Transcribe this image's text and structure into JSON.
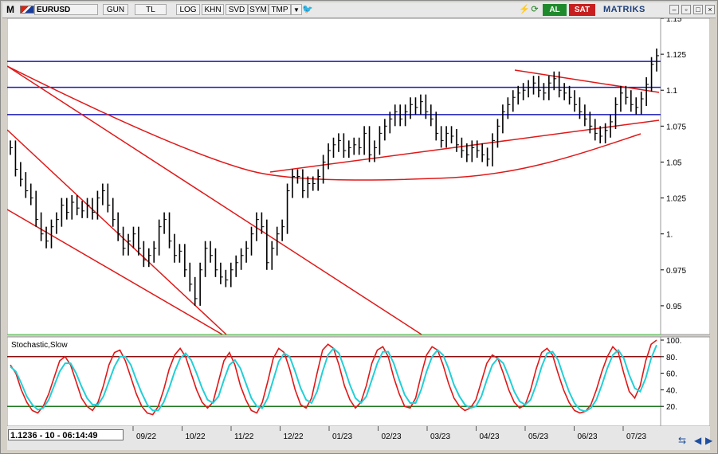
{
  "toolbar": {
    "symbol": "EURUSD",
    "periods": [
      "GUN",
      "TL",
      "LOG",
      "KHN",
      "SVD",
      "SYM",
      "TMP"
    ],
    "buy_label": "AL",
    "sell_label": "SAT",
    "brand": "MATRIKS"
  },
  "status": {
    "readout": "1.1236 - 10 - 06:14:49"
  },
  "colors": {
    "price_line": "#000000",
    "channel": "#e01818",
    "support": "#1a1ab8",
    "stoch_k": "#e01818",
    "stoch_d": "#22cfd6",
    "overbought": "#8b1010",
    "oversold": "#1f7a1f"
  },
  "chart_data": [
    {
      "type": "line",
      "title": "",
      "x_tick_labels": [
        "09/22",
        "10/22",
        "11/22",
        "12/22",
        "01/23",
        "02/23",
        "03/23",
        "04/23",
        "05/23",
        "06/23",
        "07/23"
      ],
      "y_tick_labels": [
        "1.15",
        "1.125",
        "1.1",
        "1.075",
        "1.05",
        "1.025",
        "1.",
        "0.975",
        "0.95"
      ],
      "ylim": [
        0.93,
        1.15
      ],
      "horizontal_levels": [
        1.12,
        1.102,
        1.083
      ],
      "close": [
        1.06,
        1.045,
        1.038,
        1.03,
        1.025,
        1.01,
        1.0,
        0.995,
        1.005,
        1.01,
        1.02,
        1.015,
        1.022,
        1.018,
        1.016,
        1.02,
        1.015,
        1.025,
        1.03,
        1.02,
        1.01,
        1.0,
        0.99,
        0.995,
        1.0,
        0.99,
        0.982,
        0.985,
        0.99,
        1.005,
        1.01,
        0.995,
        0.985,
        0.988,
        0.975,
        0.965,
        0.955,
        0.975,
        0.99,
        0.985,
        0.975,
        0.97,
        0.968,
        0.975,
        0.98,
        0.985,
        0.99,
        1.0,
        1.01,
        1.005,
        0.98,
        0.99,
        1.0,
        1.005,
        1.03,
        1.04,
        1.04,
        1.03,
        1.035,
        1.035,
        1.04,
        1.05,
        1.058,
        1.062,
        1.065,
        1.058,
        1.06,
        1.062,
        1.06,
        1.07,
        1.055,
        1.06,
        1.07,
        1.075,
        1.08,
        1.085,
        1.08,
        1.085,
        1.09,
        1.088,
        1.092,
        1.085,
        1.08,
        1.07,
        1.065,
        1.07,
        1.068,
        1.062,
        1.058,
        1.055,
        1.06,
        1.058,
        1.055,
        1.052,
        1.065,
        1.075,
        1.085,
        1.09,
        1.095,
        1.098,
        1.1,
        1.102,
        1.105,
        1.1,
        1.098,
        1.105,
        1.108,
        1.1,
        1.098,
        1.095,
        1.09,
        1.085,
        1.08,
        1.075,
        1.07,
        1.068,
        1.072,
        1.078,
        1.09,
        1.098,
        1.095,
        1.09,
        1.088,
        1.094,
        1.104,
        1.118,
        1.124
      ]
    },
    {
      "type": "line",
      "title": "Stochastic,Slow",
      "y_tick_labels": [
        "100.",
        "80.",
        "60.",
        "40.",
        "20."
      ],
      "ylim": [
        0,
        100
      ],
      "levels": [
        80,
        20
      ],
      "series": [
        {
          "values": [
            70,
            60,
            40,
            25,
            15,
            12,
            20,
            35,
            55,
            75,
            80,
            70,
            50,
            30,
            20,
            15,
            25,
            45,
            70,
            85,
            88,
            75,
            55,
            35,
            20,
            12,
            10,
            20,
            40,
            65,
            82,
            90,
            80,
            60,
            40,
            25,
            18,
            25,
            50,
            75,
            85,
            70,
            45,
            28,
            15,
            12,
            25,
            50,
            78,
            90,
            85,
            65,
            40,
            22,
            18,
            30,
            60,
            88,
            95,
            90,
            70,
            45,
            28,
            18,
            25,
            45,
            72,
            88,
            92,
            80,
            55,
            35,
            20,
            18,
            30,
            58,
            82,
            92,
            88,
            70,
            48,
            30,
            20,
            15,
            18,
            28,
            50,
            72,
            82,
            78,
            60,
            40,
            25,
            18,
            22,
            40,
            65,
            85,
            90,
            82,
            60,
            40,
            25,
            15,
            12,
            14,
            22,
            40,
            62,
            80,
            92,
            85,
            60,
            38,
            30,
            45,
            75,
            95,
            100
          ]
        },
        {
          "values": [
            68,
            62,
            48,
            32,
            22,
            16,
            18,
            28,
            45,
            62,
            72,
            72,
            60,
            44,
            30,
            22,
            22,
            32,
            50,
            68,
            80,
            80,
            70,
            52,
            36,
            22,
            15,
            15,
            25,
            42,
            62,
            78,
            84,
            76,
            60,
            42,
            28,
            24,
            32,
            52,
            70,
            76,
            66,
            48,
            30,
            20,
            18,
            30,
            52,
            74,
            84,
            80,
            62,
            42,
            28,
            24,
            38,
            62,
            82,
            90,
            84,
            66,
            46,
            30,
            24,
            32,
            52,
            72,
            86,
            86,
            72,
            52,
            34,
            24,
            24,
            40,
            62,
            80,
            88,
            82,
            66,
            46,
            32,
            22,
            18,
            20,
            32,
            52,
            70,
            78,
            72,
            56,
            38,
            26,
            22,
            28,
            46,
            68,
            84,
            86,
            76,
            56,
            38,
            24,
            16,
            14,
            18,
            28,
            46,
            66,
            82,
            88,
            78,
            58,
            42,
            38,
            54,
            78,
            94
          ]
        }
      ]
    }
  ]
}
